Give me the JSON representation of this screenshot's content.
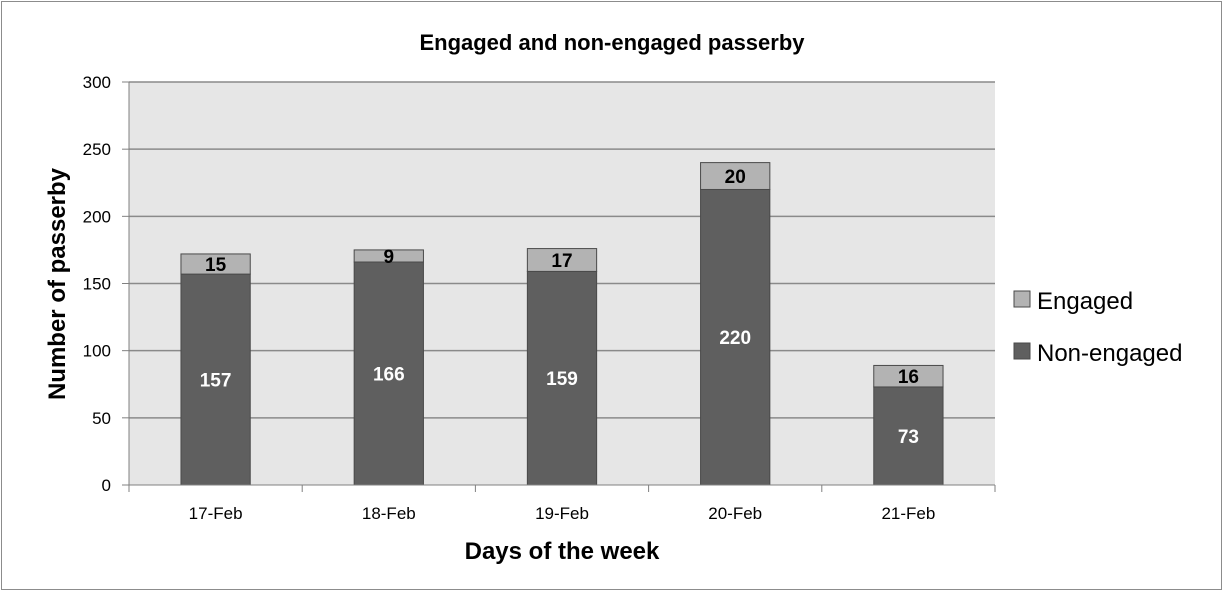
{
  "chart_data": {
    "type": "bar",
    "stacked": true,
    "title": "Engaged and non-engaged passerby",
    "xlabel": "Days of the week",
    "ylabel": "Number of passerby",
    "categories": [
      "17-Feb",
      "18-Feb",
      "19-Feb",
      "20-Feb",
      "21-Feb"
    ],
    "series": [
      {
        "name": "Non-engaged",
        "values": [
          157,
          166,
          159,
          220,
          73
        ],
        "color": "#5f5f5f"
      },
      {
        "name": "Engaged",
        "values": [
          15,
          9,
          17,
          20,
          16
        ],
        "color": "#b3b3b3"
      }
    ],
    "ylim": [
      0,
      300
    ],
    "yticks": [
      "0",
      "50",
      "100",
      "150",
      "200",
      "250",
      "300"
    ],
    "grid": true,
    "legend": "right",
    "plot_background": "#e6e6e6",
    "gridline_color": "#8a8a8a"
  }
}
